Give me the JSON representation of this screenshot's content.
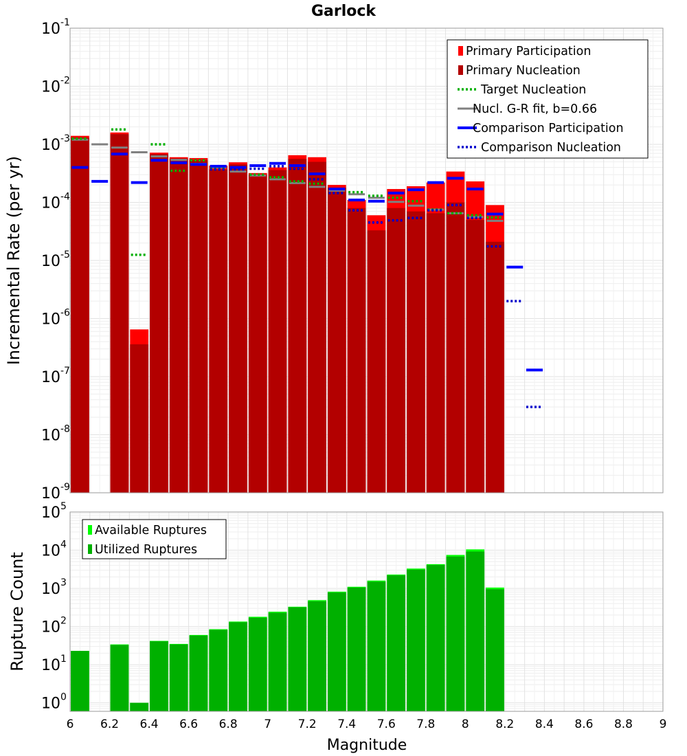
{
  "chart_data": [
    {
      "type": "bar",
      "title": "Garlock",
      "xlabel": "Magnitude",
      "ylabel": "Incremental Rate (per yr)",
      "yscale": "log",
      "xlim": [
        6,
        9
      ],
      "ylim": [
        1e-09,
        0.1
      ],
      "grid": true,
      "legend_position": "top-right",
      "legend": [
        "Primary Participation",
        "Primary Nucleation",
        "Target Nucleation",
        "Nucl. G-R fit, b=0.66",
        "Comparison Participation",
        "Comparison Nucleation"
      ],
      "x": [
        6.05,
        6.15,
        6.25,
        6.35,
        6.45,
        6.55,
        6.65,
        6.75,
        6.85,
        6.95,
        7.05,
        7.15,
        7.25,
        7.35,
        7.45,
        7.55,
        7.65,
        7.75,
        7.85,
        7.95,
        8.05,
        8.15,
        8.25,
        8.35
      ],
      "series": [
        {
          "name": "Primary Participation",
          "style": "bar",
          "color": "#ff0000",
          "values": [
            0.0014,
            null,
            0.0016,
            6.5e-07,
            0.00072,
            0.0006,
            0.00058,
            0.00043,
            0.00049,
            0.00032,
            0.0004,
            0.00065,
            0.0006,
            0.0002,
            0.00011,
            6e-05,
            0.00017,
            0.00019,
            0.00022,
            0.00034,
            0.00023,
            9e-05,
            null,
            null
          ]
        },
        {
          "name": "Primary Nucleation",
          "style": "bar",
          "color": "#b30000",
          "values": [
            0.0013,
            null,
            0.0015,
            3.6e-07,
            0.00068,
            0.00057,
            0.00054,
            0.00037,
            0.00045,
            0.0003,
            0.00036,
            0.00056,
            0.0005,
            0.00018,
            8e-05,
            3.3e-05,
            8e-05,
            7e-05,
            6.5e-05,
            0.0001,
            5e-05,
            2.1e-05,
            null,
            null
          ]
        },
        {
          "name": "Target Nucleation",
          "style": "dotted",
          "color": "#00b000",
          "values": [
            0.00125,
            null,
            0.0018,
            1.25e-05,
            0.001,
            0.00035,
            0.00053,
            0.0004,
            0.00038,
            0.0003,
            0.00027,
            0.00023,
            0.00021,
            0.00017,
            0.00015,
            0.00013,
            0.00012,
            0.000105,
            7.5e-05,
            6.5e-05,
            6e-05,
            5.5e-05,
            null,
            null
          ]
        },
        {
          "name": "Nucl. G-R fit, b=0.66",
          "style": "solid",
          "color": "#808080",
          "values": [
            0.0012,
            0.001,
            0.00088,
            0.00073,
            0.00062,
            0.00054,
            0.00046,
            0.0004,
            0.00034,
            0.00029,
            0.00025,
            0.000215,
            0.000185,
            0.00016,
            0.000138,
            0.00012,
            0.000102,
            8.8e-05,
            7.5e-05,
            6.5e-05,
            5.6e-05,
            4.8e-05,
            null,
            null
          ]
        },
        {
          "name": "Comparison Participation",
          "style": "solid",
          "color": "#0000ff",
          "values": [
            0.0004,
            0.00023,
            0.00068,
            0.00022,
            0.00053,
            0.00048,
            0.00045,
            0.00042,
            0.0004,
            0.00043,
            0.00047,
            0.00043,
            0.00031,
            0.00017,
            0.00011,
            0.000105,
            0.000145,
            0.000165,
            0.00022,
            0.00026,
            0.00017,
            6.3e-05,
            7.7e-06,
            1.3e-07
          ]
        },
        {
          "name": "Comparison Nucleation",
          "style": "dotted",
          "color": "#0000cc",
          "values": [
            null,
            null,
            null,
            null,
            null,
            null,
            null,
            0.00037,
            0.00037,
            0.00038,
            0.00042,
            0.00038,
            0.00025,
            0.000145,
            7.3e-05,
            4.5e-05,
            4.9e-05,
            5.4e-05,
            7.3e-05,
            9e-05,
            5.4e-05,
            1.75e-05,
            2e-06,
            3e-08
          ]
        }
      ]
    },
    {
      "type": "bar",
      "xlabel": "Magnitude",
      "ylabel": "Rupture Count",
      "yscale": "log",
      "xlim": [
        6,
        9
      ],
      "ylim": [
        0.6,
        100000
      ],
      "grid": true,
      "legend_position": "top-left",
      "legend": [
        "Available Ruptures",
        "Utilized Ruptures"
      ],
      "x": [
        6.05,
        6.15,
        6.25,
        6.35,
        6.45,
        6.55,
        6.65,
        6.75,
        6.85,
        6.95,
        7.05,
        7.15,
        7.25,
        7.35,
        7.45,
        7.55,
        7.65,
        7.75,
        7.85,
        7.95,
        8.05,
        8.15
      ],
      "series": [
        {
          "name": "Available Ruptures",
          "color": "#00ff00",
          "values": [
            23,
            null,
            34,
            1,
            42,
            35,
            60,
            85,
            135,
            180,
            245,
            330,
            490,
            820,
            1100,
            1600,
            2300,
            3300,
            4300,
            7500,
            10500,
            1050
          ]
        },
        {
          "name": "Utilized Ruptures",
          "color": "#00b000",
          "values": [
            23,
            null,
            33,
            1,
            41,
            34,
            58,
            82,
            130,
            170,
            230,
            320,
            460,
            780,
            1050,
            1500,
            2200,
            3100,
            4100,
            6800,
            9200,
            950
          ]
        }
      ]
    }
  ],
  "x_ticks": [
    "6",
    "6.2",
    "6.4",
    "6.6",
    "6.8",
    "7",
    "7.2",
    "7.4",
    "7.6",
    "7.8",
    "8",
    "8.2",
    "8.4",
    "8.6",
    "8.8",
    "9"
  ]
}
